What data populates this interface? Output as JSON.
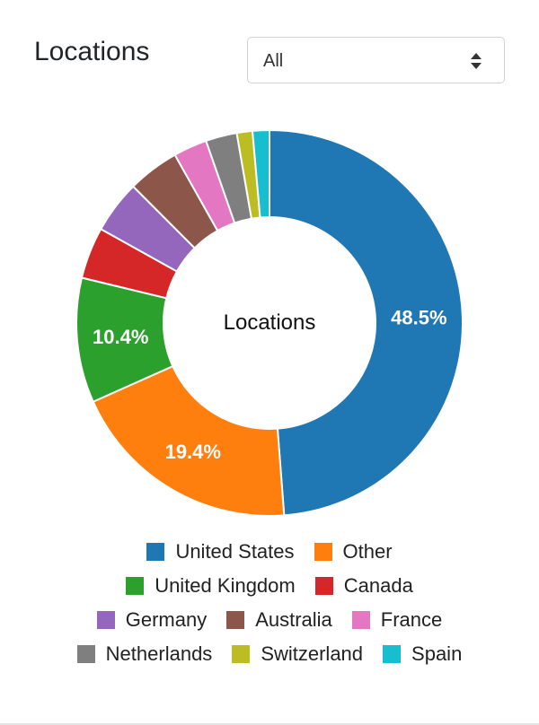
{
  "card": {
    "title": "Locations"
  },
  "filter": {
    "selected": "All"
  },
  "chart_data": {
    "type": "pie",
    "center_label": "Locations",
    "categories": [
      "United States",
      "Other",
      "United Kingdom",
      "Canada",
      "Germany",
      "Australia",
      "France",
      "Netherlands",
      "Switzerland",
      "Spain"
    ],
    "values": [
      48.5,
      19.4,
      10.4,
      4.3,
      4.4,
      4.3,
      2.8,
      2.6,
      1.3,
      1.4
    ],
    "colors": [
      "#1f77b4",
      "#ff7f0e",
      "#2ca02c",
      "#d62728",
      "#9467bd",
      "#8c564b",
      "#e377c2",
      "#7f7f7f",
      "#bcbd22",
      "#17becf"
    ],
    "data_labels": [
      "48.5%",
      "19.4%",
      "10.4%",
      "",
      "",
      "",
      "",
      "",
      "",
      ""
    ],
    "legend": {
      "position": "bottom",
      "rows": [
        [
          0,
          1
        ],
        [
          2,
          3
        ],
        [
          4,
          5,
          6
        ],
        [
          7,
          8,
          9
        ]
      ]
    }
  }
}
